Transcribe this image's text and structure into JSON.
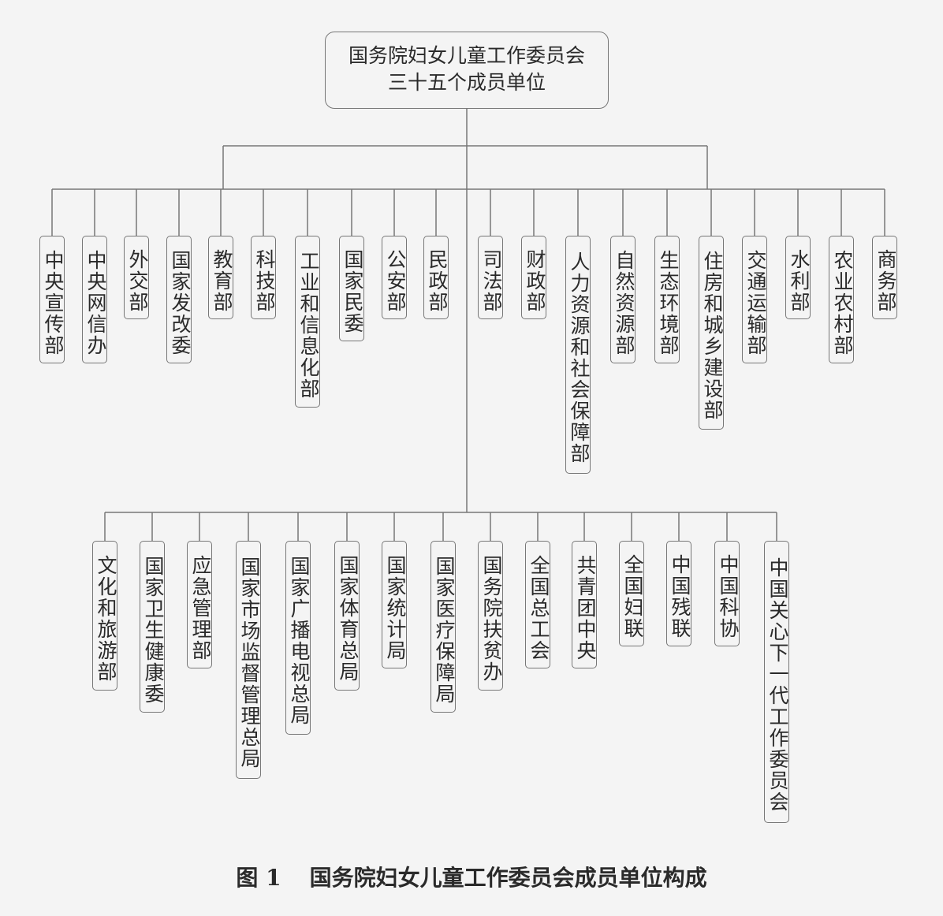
{
  "root": {
    "line1": "国务院妇女儿童工作委员会",
    "line2": "三十五个成员单位"
  },
  "top_row": [
    "中央宣传部",
    "中央网信办",
    "外交部",
    "国家发改委",
    "教育部",
    "科技部",
    "工业和信息化部",
    "国家民委",
    "公安部",
    "民政部",
    "司法部",
    "财政部",
    "人力资源和社会保障部",
    "自然资源部",
    "生态环境部",
    "住房和城乡建设部",
    "交通运输部",
    "水利部",
    "农业农村部",
    "商务部"
  ],
  "bottom_row": [
    "文化和旅游部",
    "国家卫生健康委",
    "应急管理部",
    "国家市场监督管理总局",
    "国家广播电视总局",
    "国家体育总局",
    "国家统计局",
    "国家医疗保障局",
    "国务院扶贫办",
    "全国总工会",
    "共青团中央",
    "全国妇联",
    "中国残联",
    "中国科协",
    "中国关心下一代工作委员会"
  ],
  "caption": {
    "label": "图 1",
    "title": "国务院妇女儿童工作委员会成员单位构成"
  }
}
